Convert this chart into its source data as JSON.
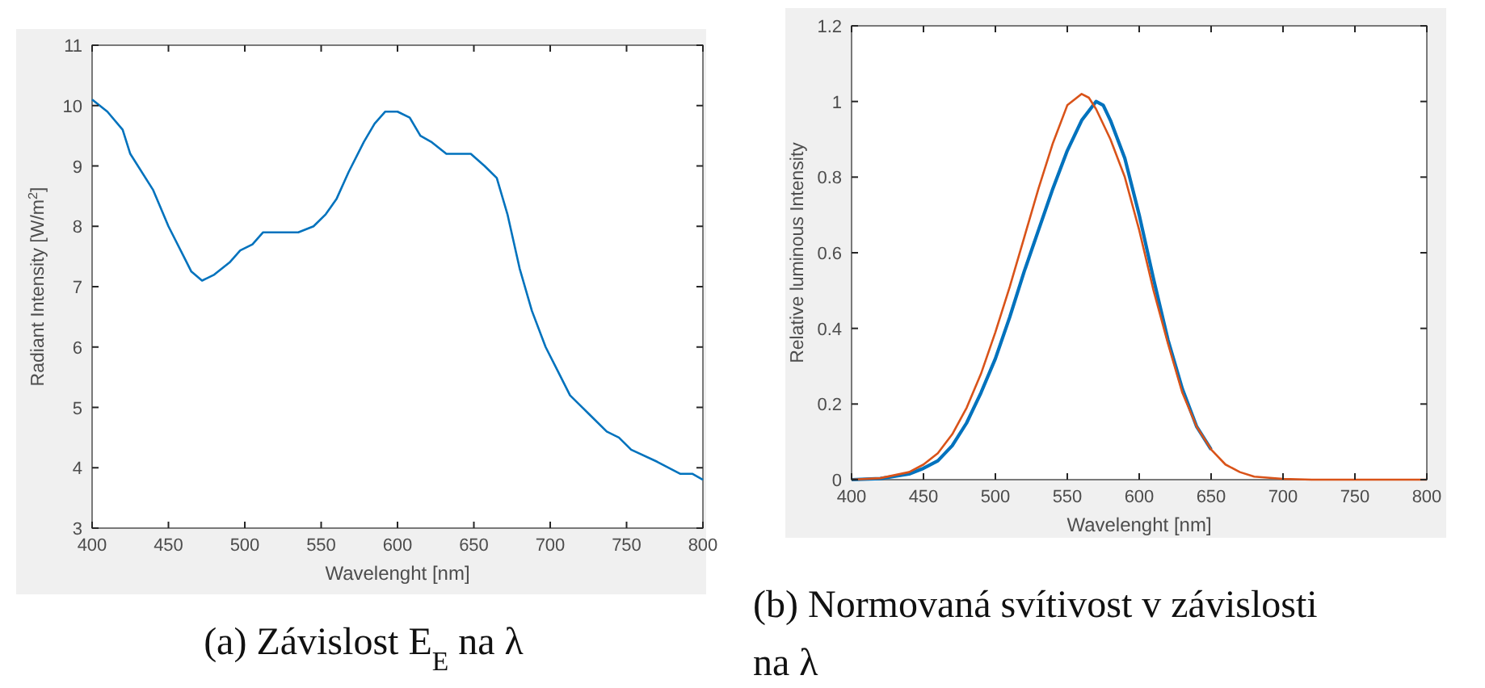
{
  "chart_data": [
    {
      "type": "line",
      "title": "(a) Závislost E$_{E}$ na λ",
      "xlabel": "Wavelenght [nm]",
      "ylabel": "Radiant Intensity [W/m$^{2}$]",
      "xlim": [
        400,
        800
      ],
      "ylim": [
        3,
        11
      ],
      "xticks": [
        400,
        450,
        500,
        550,
        600,
        650,
        700,
        750,
        800
      ],
      "yticks": [
        3,
        4,
        5,
        6,
        7,
        8,
        9,
        10,
        11
      ],
      "grid": false,
      "series": [
        {
          "color": "#0072bd",
          "x": [
            400,
            410,
            420,
            425,
            440,
            450,
            460,
            465,
            472,
            480,
            490,
            497,
            505,
            512,
            535,
            545,
            553,
            560,
            568,
            578,
            585,
            592,
            600,
            608,
            615,
            622,
            632,
            648,
            657,
            665,
            672,
            680,
            688,
            697,
            705,
            713,
            725,
            737,
            745,
            753,
            770,
            785,
            793,
            800
          ],
          "values": [
            10.1,
            9.9,
            9.6,
            9.2,
            8.6,
            8.0,
            7.5,
            7.25,
            7.1,
            7.2,
            7.4,
            7.6,
            7.7,
            7.9,
            7.9,
            8.0,
            8.2,
            8.45,
            8.9,
            9.4,
            9.7,
            9.9,
            9.9,
            9.8,
            9.5,
            9.4,
            9.2,
            9.2,
            9.0,
            8.8,
            8.2,
            7.3,
            6.6,
            6.0,
            5.6,
            5.2,
            4.9,
            4.6,
            4.5,
            4.3,
            4.1,
            3.9,
            3.9,
            3.8
          ]
        }
      ]
    },
    {
      "type": "line",
      "title": "(b) Normovaná svítivost v závislosti na λ",
      "xlabel": "Wavelenght [nm]",
      "ylabel": "Relative luminous Intensity",
      "xlim": [
        400,
        800
      ],
      "ylim": [
        0,
        1.2
      ],
      "xticks": [
        400,
        450,
        500,
        550,
        600,
        650,
        700,
        750,
        800
      ],
      "yticks": [
        0,
        0.2,
        0.4,
        0.6,
        0.8,
        1,
        1.2
      ],
      "grid": false,
      "series": [
        {
          "color": "#0072bd",
          "x": [
            400,
            420,
            440,
            450,
            460,
            470,
            480,
            490,
            500,
            510,
            520,
            530,
            540,
            550,
            560,
            570,
            575,
            580,
            590,
            600,
            610,
            620,
            630,
            640,
            650
          ],
          "values": [
            0,
            0.003,
            0.015,
            0.03,
            0.05,
            0.09,
            0.15,
            0.23,
            0.32,
            0.43,
            0.55,
            0.66,
            0.77,
            0.87,
            0.95,
            1.0,
            0.99,
            0.95,
            0.85,
            0.7,
            0.53,
            0.37,
            0.24,
            0.14,
            0.08
          ]
        },
        {
          "color": "#d95319",
          "x": [
            400,
            420,
            440,
            450,
            460,
            470,
            480,
            490,
            500,
            510,
            520,
            530,
            540,
            550,
            560,
            565,
            570,
            580,
            590,
            600,
            610,
            620,
            630,
            640,
            650,
            660,
            670,
            680,
            700,
            720,
            800
          ],
          "values": [
            0,
            0.004,
            0.02,
            0.04,
            0.07,
            0.12,
            0.19,
            0.28,
            0.39,
            0.51,
            0.64,
            0.77,
            0.89,
            0.99,
            1.02,
            1.01,
            0.98,
            0.9,
            0.8,
            0.66,
            0.5,
            0.36,
            0.23,
            0.14,
            0.08,
            0.04,
            0.02,
            0.008,
            0.002,
            0,
            0
          ]
        }
      ]
    }
  ]
}
